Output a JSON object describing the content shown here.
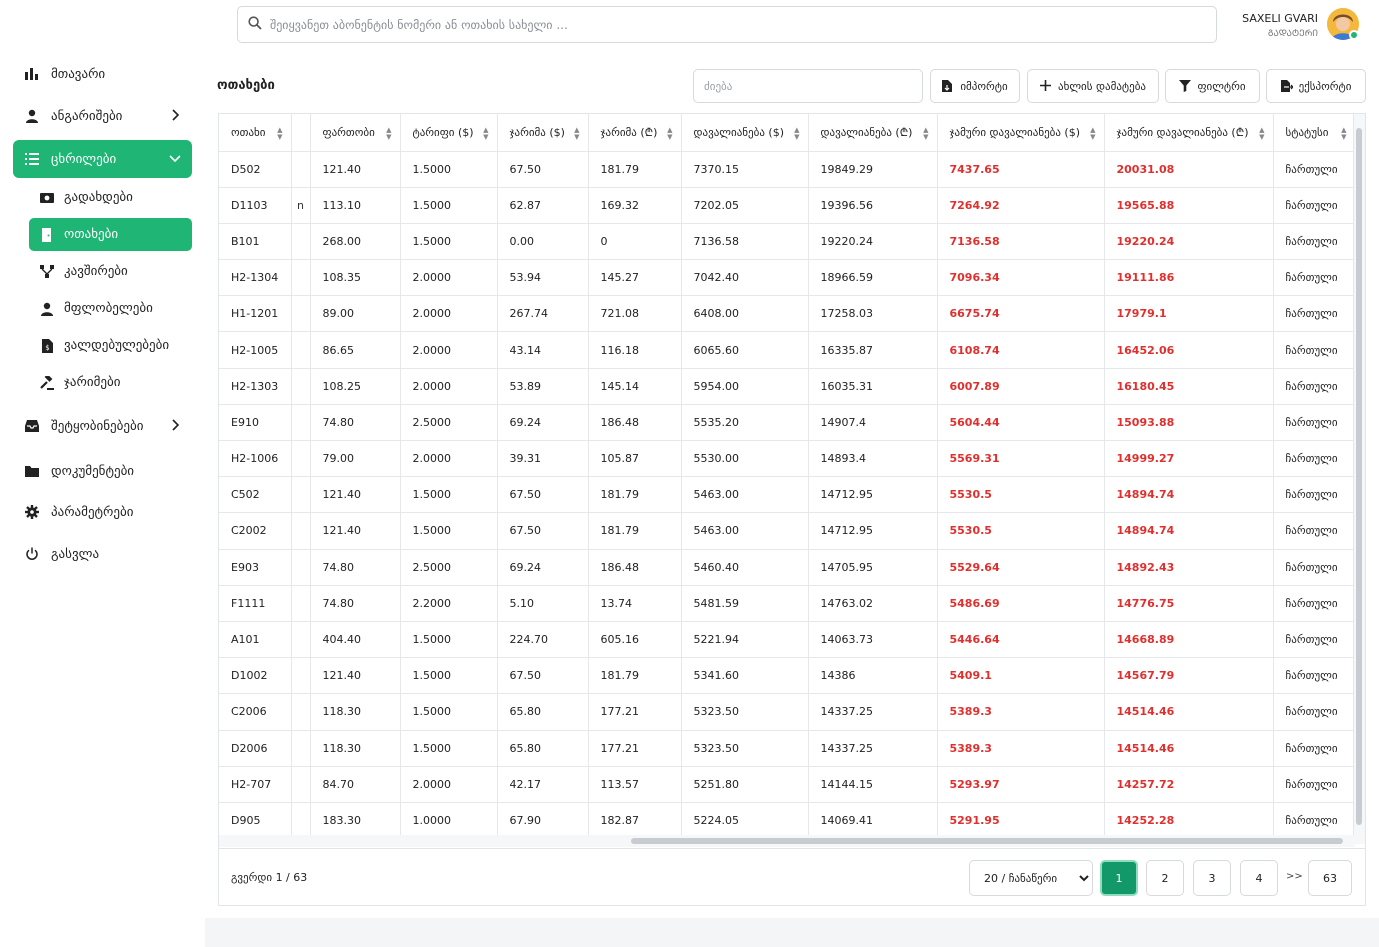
{
  "search": {
    "placeholder": "შეიყვანეთ აბონენტის ნომერი ან ოთახის სახელი ..."
  },
  "user": {
    "name": "SAXELI GVARI",
    "role": "ᲒᲐᲓᲐᲢᲔᲠᲘ"
  },
  "sidebar": {
    "items": [
      {
        "label": "მთავარი",
        "icon": "bar-chart-icon"
      },
      {
        "label": "ანგარიშები",
        "icon": "user-icon"
      },
      {
        "label": "ცხრილები",
        "icon": "list-icon"
      },
      {
        "label": "შეტყობინებები",
        "icon": "inbox-icon"
      },
      {
        "label": "დოკუმენტები",
        "icon": "folder-icon"
      },
      {
        "label": "პარამეტრები",
        "icon": "gear-icon"
      },
      {
        "label": "გასვლა",
        "icon": "power-icon"
      }
    ],
    "subitems": [
      {
        "label": "გადახდები",
        "icon": "money-icon"
      },
      {
        "label": "ოთახები",
        "icon": "door-icon"
      },
      {
        "label": "კავშირები",
        "icon": "network-icon"
      },
      {
        "label": "მფლობელები",
        "icon": "person-icon"
      },
      {
        "label": "ვალდებულებები",
        "icon": "invoice-icon"
      },
      {
        "label": "ჯარიმები",
        "icon": "gavel-icon"
      }
    ]
  },
  "toolbar": {
    "title": "ოთახები",
    "filter_placeholder": "ძიება",
    "import_label": "იმპორტი",
    "add_label": "ახლის დამატება",
    "filter_label": "ფილტრი",
    "export_label": "ექსპორტი"
  },
  "table": {
    "headers": [
      "ოთახი",
      "",
      "ფართობი",
      "ტარიფი ($)",
      "ჯარიმა ($)",
      "ჯარიმა (₾)",
      "დავალიანება ($)",
      "დავალიანება (₾)",
      "ჯამური დავალიანება ($)",
      "ჯამური დავალიანება (₾)",
      "სტატუსი"
    ],
    "rows": [
      [
        "D502",
        "",
        "121.40",
        "1.5000",
        "67.50",
        "181.79",
        "7370.15",
        "19849.29",
        "7437.65",
        "20031.08",
        "ჩართული"
      ],
      [
        "D1103",
        "n",
        "113.10",
        "1.5000",
        "62.87",
        "169.32",
        "7202.05",
        "19396.56",
        "7264.92",
        "19565.88",
        "ჩართული"
      ],
      [
        "B101",
        "",
        "268.00",
        "1.5000",
        "0.00",
        "0",
        "7136.58",
        "19220.24",
        "7136.58",
        "19220.24",
        "ჩართული"
      ],
      [
        "H2-1304",
        "",
        "108.35",
        "2.0000",
        "53.94",
        "145.27",
        "7042.40",
        "18966.59",
        "7096.34",
        "19111.86",
        "ჩართული"
      ],
      [
        "H1-1201",
        "",
        "89.00",
        "2.0000",
        "267.74",
        "721.08",
        "6408.00",
        "17258.03",
        "6675.74",
        "17979.1",
        "ჩართული"
      ],
      [
        "H2-1005",
        "",
        "86.65",
        "2.0000",
        "43.14",
        "116.18",
        "6065.60",
        "16335.87",
        "6108.74",
        "16452.06",
        "ჩართული"
      ],
      [
        "H2-1303",
        "",
        "108.25",
        "2.0000",
        "53.89",
        "145.14",
        "5954.00",
        "16035.31",
        "6007.89",
        "16180.45",
        "ჩართული"
      ],
      [
        "E910",
        "",
        "74.80",
        "2.5000",
        "69.24",
        "186.48",
        "5535.20",
        "14907.4",
        "5604.44",
        "15093.88",
        "ჩართული"
      ],
      [
        "H2-1006",
        "",
        "79.00",
        "2.0000",
        "39.31",
        "105.87",
        "5530.00",
        "14893.4",
        "5569.31",
        "14999.27",
        "ჩართული"
      ],
      [
        "C502",
        "",
        "121.40",
        "1.5000",
        "67.50",
        "181.79",
        "5463.00",
        "14712.95",
        "5530.5",
        "14894.74",
        "ჩართული"
      ],
      [
        "C2002",
        "",
        "121.40",
        "1.5000",
        "67.50",
        "181.79",
        "5463.00",
        "14712.95",
        "5530.5",
        "14894.74",
        "ჩართული"
      ],
      [
        "E903",
        "",
        "74.80",
        "2.5000",
        "69.24",
        "186.48",
        "5460.40",
        "14705.95",
        "5529.64",
        "14892.43",
        "ჩართული"
      ],
      [
        "F1111",
        "",
        "74.80",
        "2.2000",
        "5.10",
        "13.74",
        "5481.59",
        "14763.02",
        "5486.69",
        "14776.75",
        "ჩართული"
      ],
      [
        "A101",
        "",
        "404.40",
        "1.5000",
        "224.70",
        "605.16",
        "5221.94",
        "14063.73",
        "5446.64",
        "14668.89",
        "ჩართული"
      ],
      [
        "D1002",
        "",
        "121.40",
        "1.5000",
        "67.50",
        "181.79",
        "5341.60",
        "14386",
        "5409.1",
        "14567.79",
        "ჩართული"
      ],
      [
        "C2006",
        "",
        "118.30",
        "1.5000",
        "65.80",
        "177.21",
        "5323.50",
        "14337.25",
        "5389.3",
        "14514.46",
        "ჩართული"
      ],
      [
        "D2006",
        "",
        "118.30",
        "1.5000",
        "65.80",
        "177.21",
        "5323.50",
        "14337.25",
        "5389.3",
        "14514.46",
        "ჩართული"
      ],
      [
        "H2-707",
        "",
        "84.70",
        "2.0000",
        "42.17",
        "113.57",
        "5251.80",
        "14144.15",
        "5293.97",
        "14257.72",
        "ჩართული"
      ],
      [
        "D905",
        "",
        "183.30",
        "1.0000",
        "67.90",
        "182.87",
        "5224.05",
        "14069.41",
        "5291.95",
        "14252.28",
        "ჩართული"
      ]
    ]
  },
  "pagination": {
    "info_prefix": "გვერდი",
    "info_value": "1 / 63",
    "per_page": "20 / ჩანაწერი",
    "pages": [
      "1",
      "2",
      "3",
      "4"
    ],
    "separator": ">>",
    "last": "63"
  },
  "colors": {
    "accent": "#1fb574",
    "danger": "#e0302e"
  }
}
